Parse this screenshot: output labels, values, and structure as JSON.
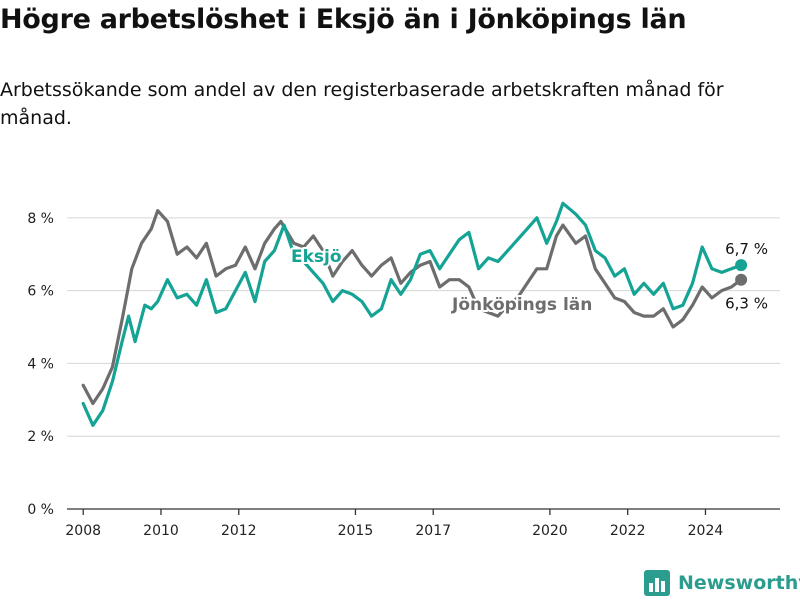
{
  "title": "Högre arbetslöshet i Eksjö än i Jönköpings län",
  "subtitle": "Arbetssökande som andel av den registerbaserade arbetskraften månad för månad.",
  "brand": "Newsworthy",
  "colors": {
    "eksjo": "#14a394",
    "lan": "#6d6d6d",
    "brand": "#2a9d8f",
    "axis": "#333333",
    "grid": "#d6d6d6"
  },
  "icons": {
    "brand_logo": "bar-chart-icon"
  },
  "chart_data": {
    "type": "line",
    "title": "Högre arbetslöshet i Eksjö än i Jönköpings län",
    "subtitle": "Arbetssökande som andel av den registerbaserade arbetskraften månad för månad.",
    "xlabel": "",
    "ylabel": "",
    "y_unit": "%",
    "xlim": [
      "2007-08",
      "2025-12"
    ],
    "ylim": [
      0,
      8.6
    ],
    "yticks": [
      0,
      2,
      4,
      6,
      8
    ],
    "ytick_labels": [
      "0 %",
      "2 %",
      "4 %",
      "6 %",
      "8 %"
    ],
    "xticks": [
      "2008",
      "2010",
      "2012",
      "2015",
      "2017",
      "2020",
      "2022",
      "2024"
    ],
    "grid": "horizontal",
    "legend": "inline labels",
    "series": [
      {
        "name": "Eksjö",
        "end_label": "6,7 %",
        "points": [
          [
            "2008-01",
            2.9
          ],
          [
            "2008-04",
            2.3
          ],
          [
            "2008-07",
            2.7
          ],
          [
            "2008-10",
            3.5
          ],
          [
            "2009-01",
            4.6
          ],
          [
            "2009-03",
            5.3
          ],
          [
            "2009-05",
            4.6
          ],
          [
            "2009-08",
            5.6
          ],
          [
            "2009-10",
            5.5
          ],
          [
            "2009-12",
            5.7
          ],
          [
            "2010-03",
            6.3
          ],
          [
            "2010-06",
            5.8
          ],
          [
            "2010-09",
            5.9
          ],
          [
            "2010-12",
            5.6
          ],
          [
            "2011-03",
            6.3
          ],
          [
            "2011-06",
            5.4
          ],
          [
            "2011-09",
            5.5
          ],
          [
            "2011-12",
            6.0
          ],
          [
            "2012-03",
            6.5
          ],
          [
            "2012-06",
            5.7
          ],
          [
            "2012-09",
            6.8
          ],
          [
            "2012-12",
            7.1
          ],
          [
            "2013-03",
            7.8
          ],
          [
            "2013-06",
            7.0
          ],
          [
            "2013-09",
            6.8
          ],
          [
            "2013-12",
            6.5
          ],
          [
            "2014-03",
            6.2
          ],
          [
            "2014-06",
            5.7
          ],
          [
            "2014-09",
            6.0
          ],
          [
            "2014-12",
            5.9
          ],
          [
            "2015-03",
            5.7
          ],
          [
            "2015-06",
            5.3
          ],
          [
            "2015-09",
            5.5
          ],
          [
            "2015-12",
            6.3
          ],
          [
            "2016-03",
            5.9
          ],
          [
            "2016-06",
            6.3
          ],
          [
            "2016-09",
            7.0
          ],
          [
            "2016-12",
            7.1
          ],
          [
            "2017-03",
            6.6
          ],
          [
            "2017-06",
            7.0
          ],
          [
            "2017-09",
            7.4
          ],
          [
            "2017-12",
            7.6
          ],
          [
            "2018-03",
            6.6
          ],
          [
            "2018-06",
            6.9
          ],
          [
            "2018-09",
            6.8
          ],
          [
            "2018-12",
            7.1
          ],
          [
            "2019-03",
            7.4
          ],
          [
            "2019-06",
            7.7
          ],
          [
            "2019-09",
            8.0
          ],
          [
            "2019-12",
            7.3
          ],
          [
            "2020-03",
            7.9
          ],
          [
            "2020-05",
            8.4
          ],
          [
            "2020-09",
            8.1
          ],
          [
            "2020-12",
            7.8
          ],
          [
            "2021-03",
            7.1
          ],
          [
            "2021-06",
            6.9
          ],
          [
            "2021-09",
            6.4
          ],
          [
            "2021-12",
            6.6
          ],
          [
            "2022-03",
            5.9
          ],
          [
            "2022-06",
            6.2
          ],
          [
            "2022-09",
            5.9
          ],
          [
            "2022-12",
            6.2
          ],
          [
            "2023-03",
            5.5
          ],
          [
            "2023-06",
            5.6
          ],
          [
            "2023-09",
            6.2
          ],
          [
            "2023-12",
            7.2
          ],
          [
            "2024-03",
            6.6
          ],
          [
            "2024-06",
            6.5
          ],
          [
            "2024-09",
            6.6
          ],
          [
            "2024-12",
            6.7
          ]
        ]
      },
      {
        "name": "Jönköpings län",
        "end_label": "6,3 %",
        "points": [
          [
            "2008-01",
            3.4
          ],
          [
            "2008-04",
            2.9
          ],
          [
            "2008-07",
            3.3
          ],
          [
            "2008-10",
            3.9
          ],
          [
            "2009-01",
            5.2
          ],
          [
            "2009-04",
            6.6
          ],
          [
            "2009-07",
            7.3
          ],
          [
            "2009-10",
            7.7
          ],
          [
            "2009-12",
            8.2
          ],
          [
            "2010-03",
            7.9
          ],
          [
            "2010-06",
            7.0
          ],
          [
            "2010-09",
            7.2
          ],
          [
            "2010-12",
            6.9
          ],
          [
            "2011-03",
            7.3
          ],
          [
            "2011-06",
            6.4
          ],
          [
            "2011-09",
            6.6
          ],
          [
            "2011-12",
            6.7
          ],
          [
            "2012-03",
            7.2
          ],
          [
            "2012-06",
            6.6
          ],
          [
            "2012-09",
            7.3
          ],
          [
            "2012-12",
            7.7
          ],
          [
            "2013-02",
            7.9
          ],
          [
            "2013-06",
            7.3
          ],
          [
            "2013-09",
            7.2
          ],
          [
            "2013-12",
            7.5
          ],
          [
            "2014-03",
            7.1
          ],
          [
            "2014-06",
            6.4
          ],
          [
            "2014-09",
            6.8
          ],
          [
            "2014-12",
            7.1
          ],
          [
            "2015-03",
            6.7
          ],
          [
            "2015-06",
            6.4
          ],
          [
            "2015-09",
            6.7
          ],
          [
            "2015-12",
            6.9
          ],
          [
            "2016-03",
            6.2
          ],
          [
            "2016-06",
            6.5
          ],
          [
            "2016-09",
            6.7
          ],
          [
            "2016-12",
            6.8
          ],
          [
            "2017-03",
            6.1
          ],
          [
            "2017-06",
            6.3
          ],
          [
            "2017-09",
            6.3
          ],
          [
            "2017-12",
            6.1
          ],
          [
            "2018-03",
            5.5
          ],
          [
            "2018-06",
            5.4
          ],
          [
            "2018-09",
            5.3
          ],
          [
            "2018-12",
            5.6
          ],
          [
            "2019-03",
            5.8
          ],
          [
            "2019-06",
            6.2
          ],
          [
            "2019-09",
            6.6
          ],
          [
            "2019-12",
            6.6
          ],
          [
            "2020-03",
            7.5
          ],
          [
            "2020-05",
            7.8
          ],
          [
            "2020-09",
            7.3
          ],
          [
            "2020-12",
            7.5
          ],
          [
            "2021-03",
            6.6
          ],
          [
            "2021-06",
            6.2
          ],
          [
            "2021-09",
            5.8
          ],
          [
            "2021-12",
            5.7
          ],
          [
            "2022-03",
            5.4
          ],
          [
            "2022-06",
            5.3
          ],
          [
            "2022-09",
            5.3
          ],
          [
            "2022-12",
            5.5
          ],
          [
            "2023-03",
            5.0
          ],
          [
            "2023-06",
            5.2
          ],
          [
            "2023-09",
            5.6
          ],
          [
            "2023-12",
            6.1
          ],
          [
            "2024-03",
            5.8
          ],
          [
            "2024-06",
            6.0
          ],
          [
            "2024-09",
            6.1
          ],
          [
            "2024-12",
            6.3
          ]
        ]
      }
    ]
  }
}
